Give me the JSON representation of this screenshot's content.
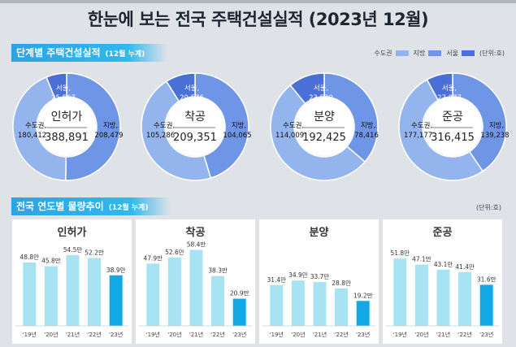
{
  "title": "한눈에 보는 전국 주택건설실적 (2023년 12월)",
  "section1": {
    "title": "단계별 주택건설실적",
    "subtitle": "(12월 누계)"
  },
  "section2": {
    "title": "전국 연도별 물량추이",
    "subtitle": "(12월 누계)",
    "unit": "(단위:호)"
  },
  "legend": {
    "items": [
      {
        "label": "수도권",
        "color": "#93b4ec"
      },
      {
        "label": "지방",
        "color": "#6f95e6"
      },
      {
        "label": "서울",
        "color": "#4a6fd6"
      }
    ],
    "unit": "(단위:호)"
  },
  "colors": {
    "metro": "#93b4ec",
    "local": "#6f95e6",
    "seoul": "#4a6fd6",
    "bar": "#a7e3f2",
    "bar_highlight": "#14a8e5"
  },
  "chart_data": [
    {
      "type": "pie",
      "title": "인허가",
      "total": "388,891",
      "slices": [
        {
          "label": "서울,",
          "value": 25567,
          "display": "25,567"
        },
        {
          "label": "수도권,",
          "value": 180412,
          "display": "180,412"
        },
        {
          "label": "지방,",
          "value": 208479,
          "display": "208,479"
        }
      ]
    },
    {
      "type": "pie",
      "title": "착공",
      "total": "209,351",
      "slices": [
        {
          "label": "서울,",
          "value": 20576,
          "display": "20,576"
        },
        {
          "label": "수도권,",
          "value": 105286,
          "display": "105,286"
        },
        {
          "label": "지방,",
          "value": 104065,
          "display": "104,065"
        }
      ]
    },
    {
      "type": "pie",
      "title": "분양",
      "total": "192,425",
      "slices": [
        {
          "label": "서울,",
          "value": 23530,
          "display": "23,530"
        },
        {
          "label": "수도권,",
          "value": 114009,
          "display": "114,009"
        },
        {
          "label": "지방,",
          "value": 78416,
          "display": "78,416"
        }
      ]
    },
    {
      "type": "pie",
      "title": "준공",
      "total": "316,415",
      "slices": [
        {
          "label": "서울,",
          "value": 27277,
          "display": "27,277"
        },
        {
          "label": "수도권,",
          "value": 177177,
          "display": "177,177"
        },
        {
          "label": "지방,",
          "value": 139238,
          "display": "139,238"
        }
      ]
    },
    {
      "type": "bar",
      "title": "인허가",
      "categories": [
        "'19년",
        "'20년",
        "'21년",
        "'22년",
        "'23년"
      ],
      "values": [
        48.8,
        45.8,
        54.5,
        52.2,
        38.9
      ],
      "labels": [
        "48.8만",
        "45.8만",
        "54.5만",
        "52.2만",
        "38.9만"
      ],
      "ylim": [
        0,
        60
      ]
    },
    {
      "type": "bar",
      "title": "착공",
      "categories": [
        "'19년",
        "'20년",
        "'21년",
        "'22년",
        "'23년"
      ],
      "values": [
        47.9,
        52.6,
        58.4,
        38.3,
        20.9
      ],
      "labels": [
        "47.9만",
        "52.6만",
        "58.4만",
        "38.3만",
        "20.9만"
      ],
      "ylim": [
        0,
        60
      ]
    },
    {
      "type": "bar",
      "title": "분양",
      "categories": [
        "'19년",
        "'20년",
        "'21년",
        "'22년",
        "'23년"
      ],
      "values": [
        31.4,
        34.9,
        33.7,
        28.8,
        19.2
      ],
      "labels": [
        "31.4만",
        "34.9만",
        "33.7만",
        "28.8만",
        "19.2만"
      ],
      "ylim": [
        0,
        60
      ]
    },
    {
      "type": "bar",
      "title": "준공",
      "categories": [
        "'19년",
        "'20년",
        "'21년",
        "'22년",
        "'23년"
      ],
      "values": [
        51.8,
        47.1,
        43.1,
        41.4,
        31.6
      ],
      "labels": [
        "51.8만",
        "47.1만",
        "43.1만",
        "41.4만",
        "31.6만"
      ],
      "ylim": [
        0,
        60
      ]
    }
  ]
}
